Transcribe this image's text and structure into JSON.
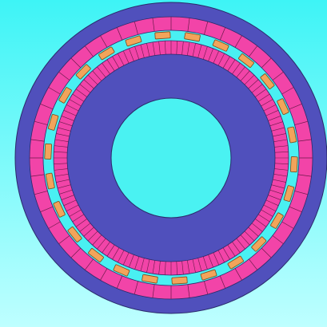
{
  "viewport": {
    "background_top": "#3EF4F6",
    "background_bottom": "#BEFFFF"
  },
  "motor": {
    "colors": {
      "iron": "#5050BC",
      "slot_band": "#F244A8",
      "airgap": "#49F0F2",
      "coil": "#F2A45A",
      "hole": "#4AF2F2",
      "outline": "#2A2A6A",
      "slot_line": "#6A1B4A",
      "coil_line": "#7A4A1E"
    },
    "outer_slot_count": 48,
    "inner_slot_count": 120,
    "coil_count": 26
  }
}
